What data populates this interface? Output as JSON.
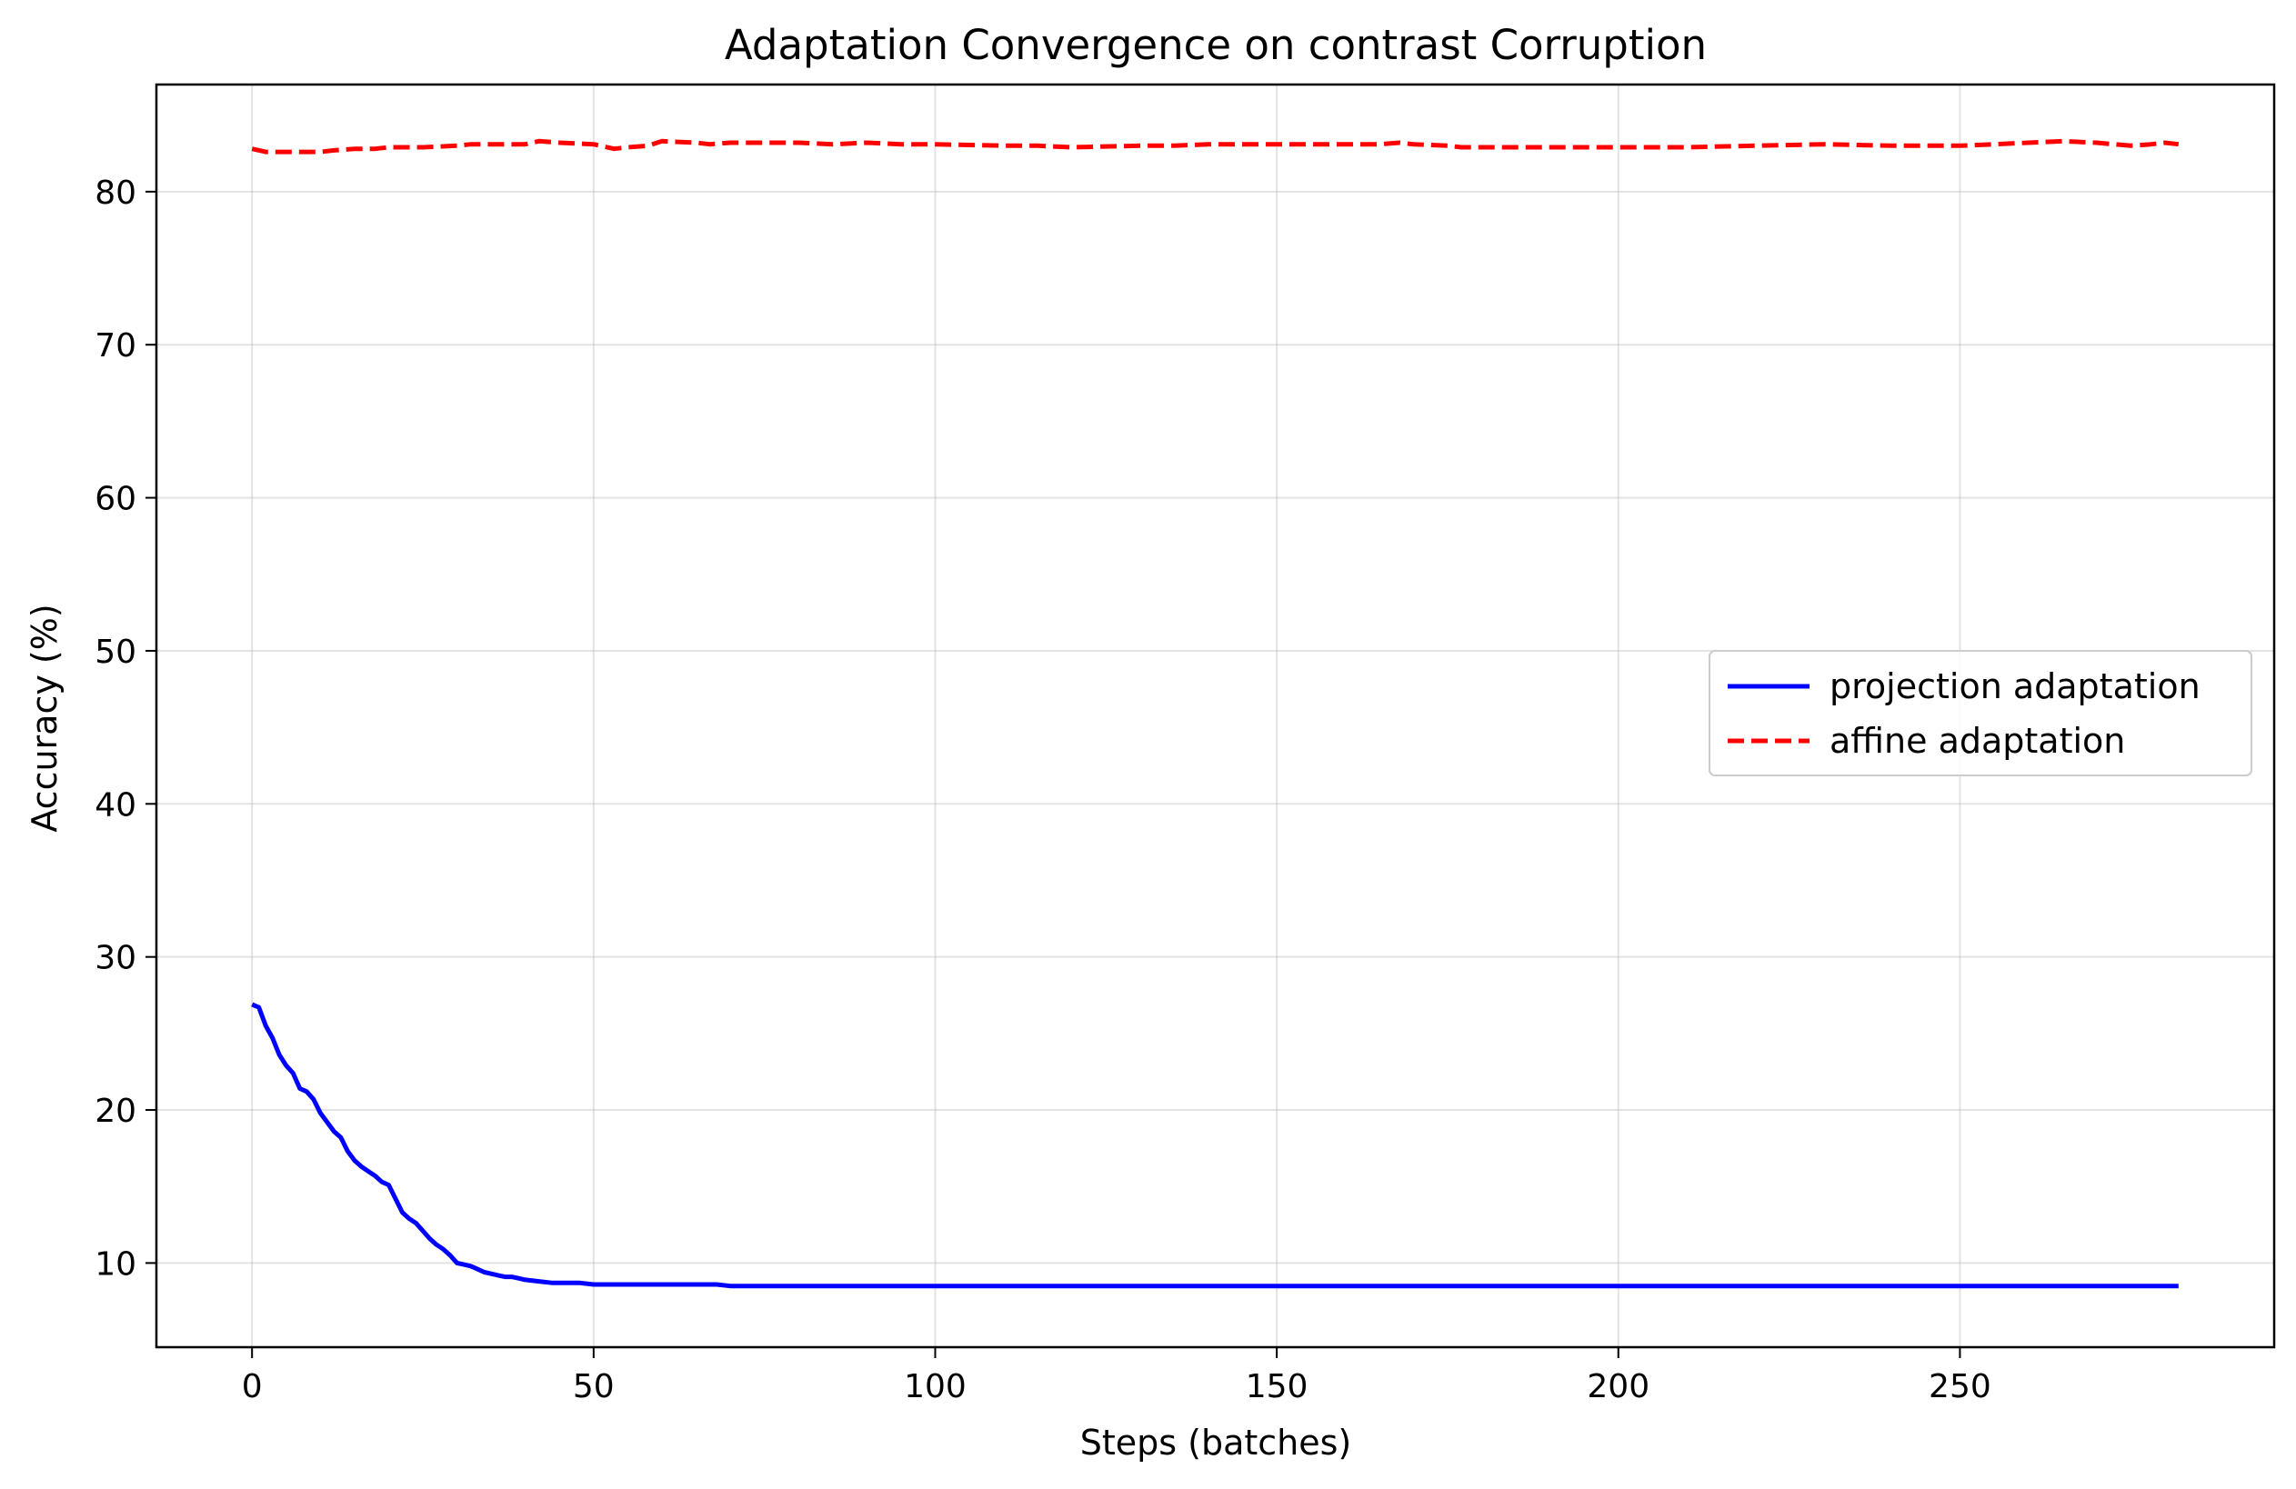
{
  "chart_data": {
    "type": "line",
    "title": "Adaptation Convergence on contrast Corruption",
    "xlabel": "Steps (batches)",
    "ylabel": "Accuracy (%)",
    "xlim": [
      -14,
      296
    ],
    "ylim": [
      4.5,
      87
    ],
    "xticks": [
      0,
      50,
      100,
      150,
      200,
      250
    ],
    "yticks": [
      10,
      20,
      30,
      40,
      50,
      60,
      70,
      80
    ],
    "grid": true,
    "legend_position": "center-right",
    "series": [
      {
        "name": "projection adaptation",
        "color": "#0000ff",
        "style": "solid",
        "x": [
          0,
          1,
          2,
          3,
          4,
          5,
          6,
          7,
          8,
          9,
          10,
          11,
          12,
          13,
          14,
          15,
          16,
          17,
          18,
          19,
          20,
          21,
          22,
          23,
          24,
          25,
          26,
          27,
          28,
          29,
          30,
          31,
          32,
          33,
          34,
          35,
          36,
          37,
          38,
          39,
          40,
          42,
          44,
          46,
          48,
          50,
          55,
          60,
          65,
          68,
          70,
          80,
          100,
          150,
          200,
          250,
          282
        ],
        "y": [
          26.9,
          26.7,
          25.5,
          24.7,
          23.6,
          22.9,
          22.4,
          21.4,
          21.2,
          20.7,
          19.8,
          19.2,
          18.6,
          18.2,
          17.3,
          16.7,
          16.3,
          16.0,
          15.7,
          15.3,
          15.1,
          14.2,
          13.3,
          12.9,
          12.6,
          12.1,
          11.6,
          11.2,
          10.9,
          10.5,
          10.0,
          9.9,
          9.8,
          9.6,
          9.4,
          9.3,
          9.2,
          9.1,
          9.1,
          9.0,
          8.9,
          8.8,
          8.7,
          8.7,
          8.7,
          8.6,
          8.6,
          8.6,
          8.6,
          8.6,
          8.5,
          8.5,
          8.5,
          8.5,
          8.5,
          8.5,
          8.5
        ]
      },
      {
        "name": "affine adaptation",
        "color": "#ff0000",
        "style": "dashed",
        "x": [
          0,
          2,
          5,
          10,
          12,
          15,
          18,
          20,
          25,
          30,
          32,
          35,
          40,
          42,
          45,
          50,
          53,
          55,
          58,
          60,
          65,
          67,
          70,
          80,
          85,
          90,
          95,
          100,
          110,
          115,
          120,
          130,
          135,
          140,
          145,
          150,
          160,
          165,
          168,
          170,
          175,
          177,
          180,
          190,
          200,
          210,
          220,
          230,
          240,
          250,
          255,
          260,
          265,
          270,
          275,
          278,
          280,
          282
        ],
        "y": [
          82.8,
          82.6,
          82.6,
          82.6,
          82.7,
          82.8,
          82.8,
          82.9,
          82.9,
          83.0,
          83.1,
          83.1,
          83.1,
          83.3,
          83.2,
          83.1,
          82.8,
          82.9,
          83.0,
          83.3,
          83.2,
          83.1,
          83.2,
          83.2,
          83.1,
          83.2,
          83.1,
          83.1,
          83.0,
          83.0,
          82.9,
          83.0,
          83.0,
          83.1,
          83.1,
          83.1,
          83.1,
          83.1,
          83.2,
          83.1,
          83.0,
          82.9,
          82.9,
          82.9,
          82.9,
          82.9,
          83.0,
          83.1,
          83.0,
          83.0,
          83.1,
          83.2,
          83.3,
          83.2,
          83.0,
          83.1,
          83.2,
          83.1
        ]
      }
    ]
  }
}
